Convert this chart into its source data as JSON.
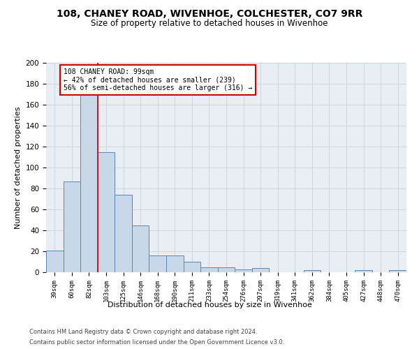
{
  "title": "108, CHANEY ROAD, WIVENHOE, COLCHESTER, CO7 9RR",
  "subtitle": "Size of property relative to detached houses in Wivenhoe",
  "xlabel": "Distribution of detached houses by size in Wivenhoe",
  "ylabel": "Number of detached properties",
  "bin_labels": [
    "39sqm",
    "60sqm",
    "82sqm",
    "103sqm",
    "125sqm",
    "146sqm",
    "168sqm",
    "190sqm",
    "211sqm",
    "233sqm",
    "254sqm",
    "276sqm",
    "297sqm",
    "319sqm",
    "341sqm",
    "362sqm",
    "384sqm",
    "405sqm",
    "427sqm",
    "448sqm",
    "470sqm"
  ],
  "bar_heights": [
    21,
    87,
    170,
    115,
    74,
    45,
    16,
    16,
    10,
    5,
    5,
    3,
    4,
    0,
    0,
    2,
    0,
    0,
    2,
    0,
    2
  ],
  "bar_color": "#c8d8e8",
  "bar_edge_color": "#5588bb",
  "red_line_index": 3,
  "annotation_text": "108 CHANEY ROAD: 99sqm\n← 42% of detached houses are smaller (239)\n56% of semi-detached houses are larger (316) →",
  "annotation_box_color": "#ffffff",
  "annotation_box_edge": "#cc0000",
  "red_line_color": "#cc0000",
  "ylim": [
    0,
    200
  ],
  "yticks": [
    0,
    20,
    40,
    60,
    80,
    100,
    120,
    140,
    160,
    180,
    200
  ],
  "footer1": "Contains HM Land Registry data © Crown copyright and database right 2024.",
  "footer2": "Contains public sector information licensed under the Open Government Licence v3.0.",
  "bg_color": "#e8eef4",
  "grid_color": "#c8d0d8",
  "title_fontsize": 10,
  "subtitle_fontsize": 8.5
}
